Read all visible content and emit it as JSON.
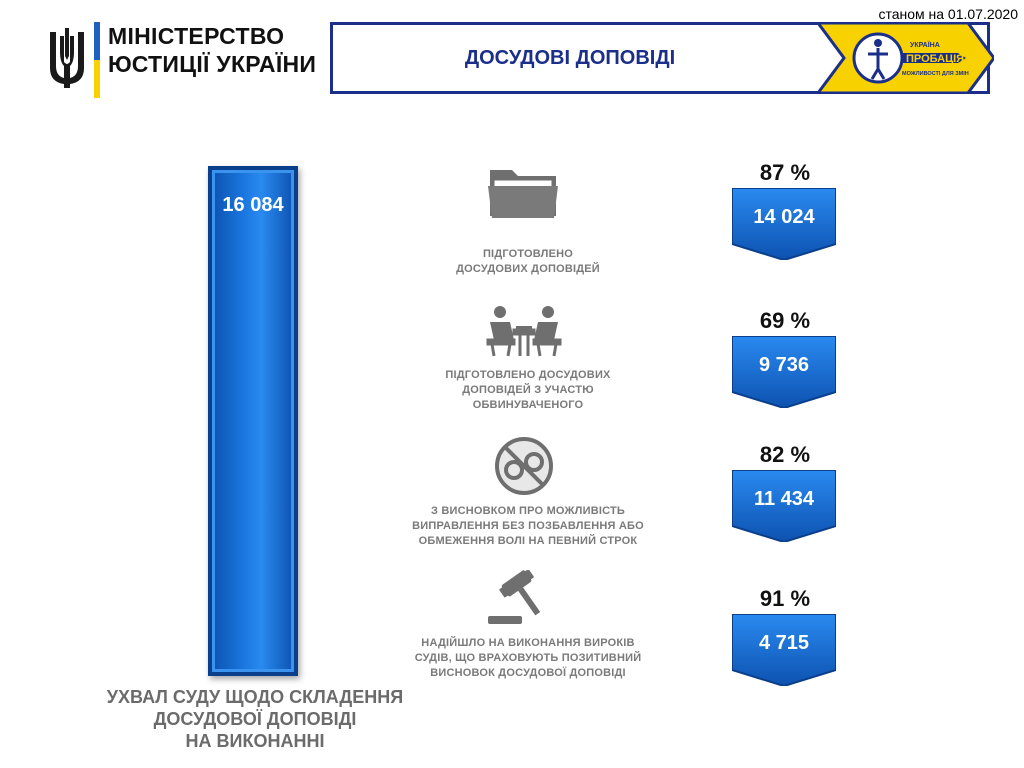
{
  "header": {
    "date_label": "станом на 01.07.2020",
    "ministry_line1": "МІНІСТЕРСТВО",
    "ministry_line2": "ЮСТИЦІЇ УКРАЇНИ",
    "title": "ДОСУДОВІ ДОПОВІДІ",
    "probation_logo": {
      "line1": "УКРАЇНА",
      "line2": "ПРОБАЦІЯ",
      "line3": "МОЖЛИВОСТІ ДЛЯ ЗМІН"
    }
  },
  "total": {
    "value": "16 084",
    "caption_line1": "УХВАЛ СУДУ ЩОДО  СКЛАДЕННЯ",
    "caption_line2": "ДОСУДОВОЇ ДОПОВІДІ",
    "caption_line3": "НА ВИКОНАННІ"
  },
  "rows": [
    {
      "icon": "folder-icon",
      "caption_line1": "ПІДГОТОВЛЕНО",
      "caption_line2": "ДОСУДОВИХ ДОПОВІДЕЙ",
      "caption_line3": "",
      "percent": "87 %",
      "value": "14 024"
    },
    {
      "icon": "interview-icon",
      "caption_line1": "ПІДГОТОВЛЕНО ДОСУДОВИХ",
      "caption_line2": "ДОПОВІДЕЙ  З УЧАСТЮ",
      "caption_line3": "ОБВИНУВАЧЕНОГО",
      "percent": "69 %",
      "value": "9 736"
    },
    {
      "icon": "no-handcuffs-icon",
      "caption_line1": "З ВИСНОВКОМ  ПРО МОЖЛИВІСТЬ",
      "caption_line2": "ВИПРАВЛЕННЯ  БЕЗ  ПОЗБАВЛЕННЯ  АБО",
      "caption_line3": "ОБМЕЖЕННЯ  ВОЛІ  НА  ПЕВНИЙ  СТРОК",
      "percent": "82 %",
      "value": "11 434"
    },
    {
      "icon": "gavel-icon",
      "caption_line1": "НАДІЙШЛО  НА  ВИКОНАННЯ  ВИРОКІВ",
      "caption_line2": "СУДІВ,  ЩО  ВРАХОВУЮТЬ  ПОЗИТИВНИЙ",
      "caption_line3": "ВИСНОВОК  ДОСУДОВОЇ  ДОПОВІДІ",
      "percent": "91 %",
      "value": "4 715"
    }
  ],
  "colors": {
    "accent_blue": "#1b78e0",
    "title_navy": "#1b2f8a",
    "logo_yellow": "#f7d100",
    "caption_gray": "#7a7a7a"
  }
}
